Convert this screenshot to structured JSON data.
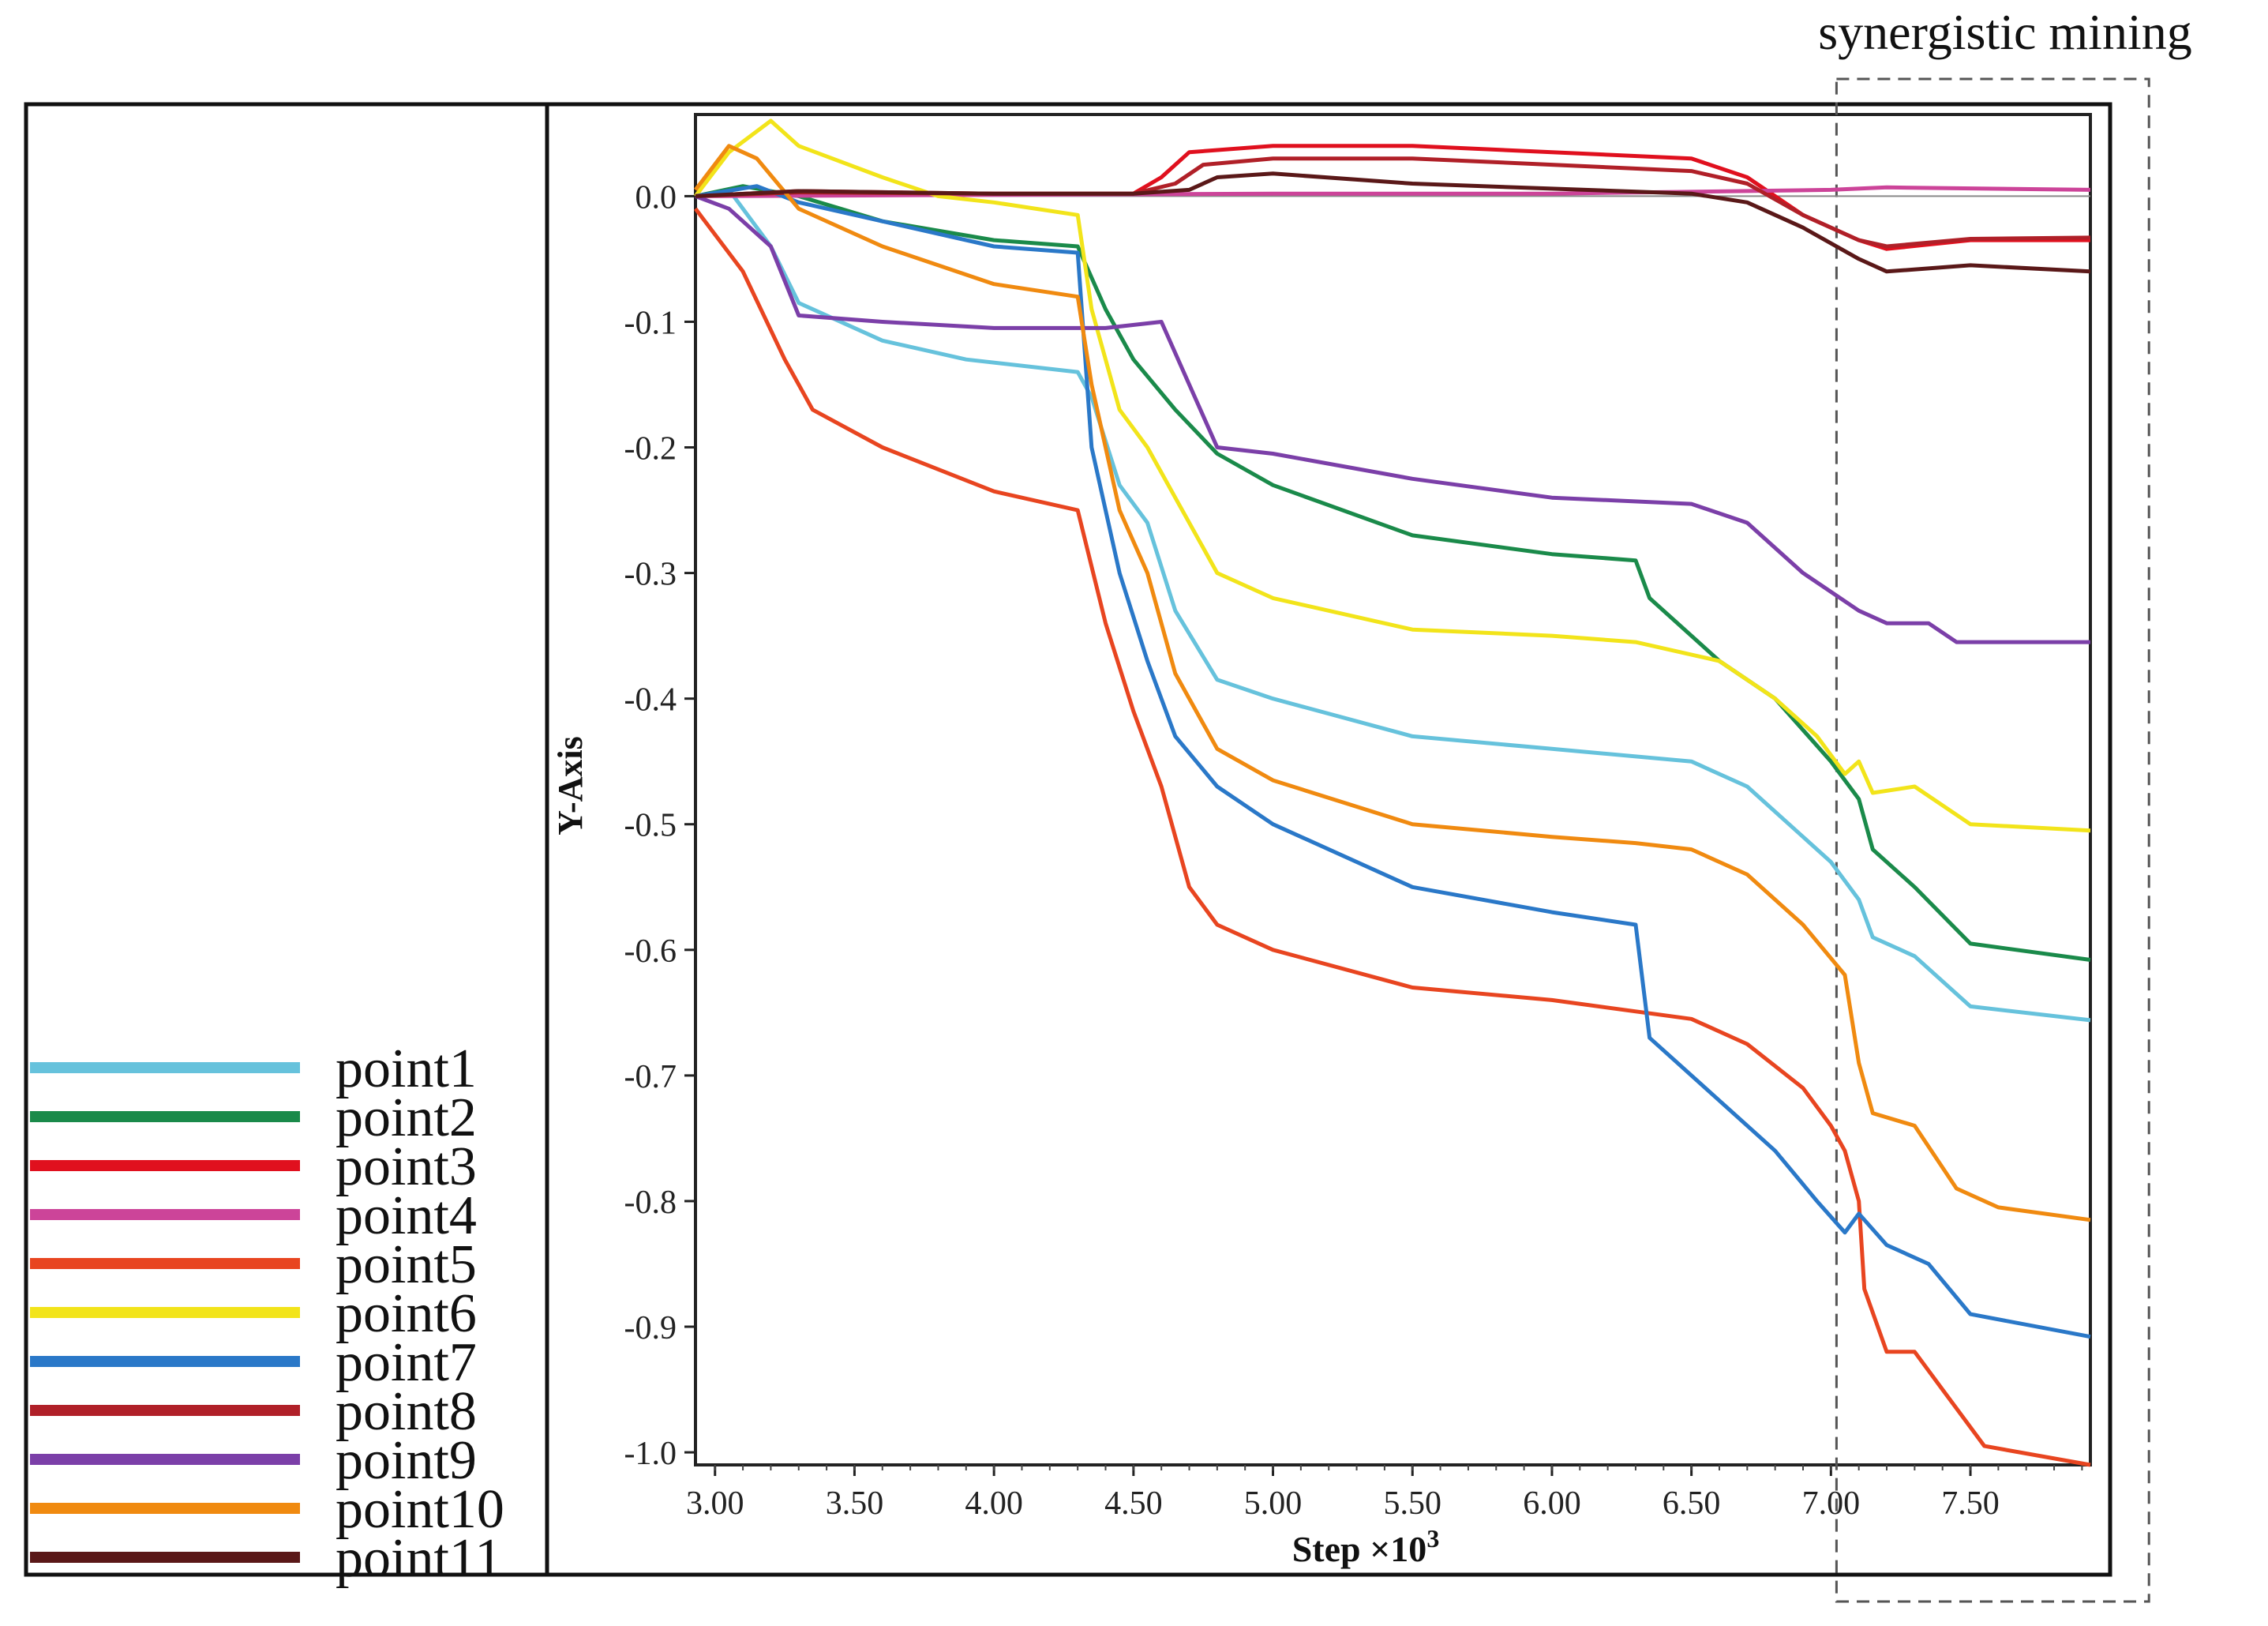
{
  "chart_data": {
    "type": "line",
    "title": "",
    "annotation": "synergistic mining",
    "annotation_range": [
      7.02,
      8.14
    ],
    "xlabel": "Step ×10",
    "xlabel_exponent": "3",
    "ylabel": "Y-Axis",
    "xlim": [
      2.93,
      7.93
    ],
    "ylim": [
      -1.01,
      0.065
    ],
    "xticks": [
      "3.00",
      "3.50",
      "4.00",
      "4.50",
      "5.00",
      "5.50",
      "6.00",
      "6.50",
      "7.00",
      "7.50"
    ],
    "xtick_values": [
      3.0,
      3.5,
      4.0,
      4.5,
      5.0,
      5.5,
      6.0,
      6.5,
      7.0,
      7.5
    ],
    "yticks": [
      "0.0",
      "-0.1",
      "-0.2",
      "-0.3",
      "-0.4",
      "-0.5",
      "-0.6",
      "-0.7",
      "-0.8",
      "-0.9",
      "-1.0"
    ],
    "ytick_values": [
      0.0,
      -0.1,
      -0.2,
      -0.3,
      -0.4,
      -0.5,
      -0.6,
      -0.7,
      -0.8,
      -0.9,
      -1.0
    ],
    "legend_position": "bottom-left",
    "series": [
      {
        "name": "point1",
        "color": "#66c2dc",
        "points": [
          [
            2.93,
            0
          ],
          [
            3.05,
            0.005
          ],
          [
            3.2,
            -0.04
          ],
          [
            3.3,
            -0.085
          ],
          [
            3.6,
            -0.115
          ],
          [
            3.9,
            -0.13
          ],
          [
            4.3,
            -0.14
          ],
          [
            4.35,
            -0.16
          ],
          [
            4.45,
            -0.23
          ],
          [
            4.55,
            -0.26
          ],
          [
            4.65,
            -0.33
          ],
          [
            4.8,
            -0.385
          ],
          [
            5.0,
            -0.4
          ],
          [
            5.5,
            -0.43
          ],
          [
            6.0,
            -0.44
          ],
          [
            6.5,
            -0.45
          ],
          [
            6.7,
            -0.47
          ],
          [
            6.9,
            -0.51
          ],
          [
            7.0,
            -0.53
          ],
          [
            7.1,
            -0.56
          ],
          [
            7.15,
            -0.59
          ],
          [
            7.3,
            -0.605
          ],
          [
            7.5,
            -0.645
          ],
          [
            7.93,
            -0.656
          ]
        ]
      },
      {
        "name": "point2",
        "color": "#1a8a4a",
        "points": [
          [
            2.93,
            0
          ],
          [
            3.1,
            0.008
          ],
          [
            3.3,
            0
          ],
          [
            3.6,
            -0.02
          ],
          [
            4.0,
            -0.035
          ],
          [
            4.3,
            -0.04
          ],
          [
            4.4,
            -0.09
          ],
          [
            4.5,
            -0.13
          ],
          [
            4.65,
            -0.17
          ],
          [
            4.8,
            -0.205
          ],
          [
            5.0,
            -0.23
          ],
          [
            5.5,
            -0.27
          ],
          [
            6.0,
            -0.285
          ],
          [
            6.3,
            -0.29
          ],
          [
            6.35,
            -0.32
          ],
          [
            6.6,
            -0.37
          ],
          [
            6.8,
            -0.4
          ],
          [
            7.0,
            -0.45
          ],
          [
            7.1,
            -0.48
          ],
          [
            7.15,
            -0.52
          ],
          [
            7.3,
            -0.55
          ],
          [
            7.5,
            -0.595
          ],
          [
            7.93,
            -0.608
          ]
        ]
      },
      {
        "name": "point3",
        "color": "#e0101e",
        "points": [
          [
            2.93,
            0
          ],
          [
            3.3,
            0.004
          ],
          [
            4.0,
            0.002
          ],
          [
            4.5,
            0.002
          ],
          [
            4.6,
            0.015
          ],
          [
            4.7,
            0.035
          ],
          [
            5.0,
            0.04
          ],
          [
            5.5,
            0.04
          ],
          [
            6.0,
            0.035
          ],
          [
            6.5,
            0.03
          ],
          [
            6.7,
            0.015
          ],
          [
            6.9,
            -0.015
          ],
          [
            7.1,
            -0.035
          ],
          [
            7.2,
            -0.042
          ],
          [
            7.5,
            -0.035
          ],
          [
            7.93,
            -0.035
          ]
        ]
      },
      {
        "name": "point4",
        "color": "#cc4499",
        "points": [
          [
            2.93,
            0
          ],
          [
            4.0,
            0.001
          ],
          [
            5.0,
            0.002
          ],
          [
            6.0,
            0.002
          ],
          [
            7.0,
            0.005
          ],
          [
            7.2,
            0.007
          ],
          [
            7.93,
            0.005
          ]
        ]
      },
      {
        "name": "point5",
        "color": "#e84520",
        "points": [
          [
            2.93,
            -0.01
          ],
          [
            3.1,
            -0.06
          ],
          [
            3.25,
            -0.13
          ],
          [
            3.35,
            -0.17
          ],
          [
            3.6,
            -0.2
          ],
          [
            4.0,
            -0.235
          ],
          [
            4.3,
            -0.25
          ],
          [
            4.4,
            -0.34
          ],
          [
            4.5,
            -0.41
          ],
          [
            4.6,
            -0.47
          ],
          [
            4.7,
            -0.55
          ],
          [
            4.8,
            -0.58
          ],
          [
            5.0,
            -0.6
          ],
          [
            5.5,
            -0.63
          ],
          [
            6.0,
            -0.64
          ],
          [
            6.5,
            -0.655
          ],
          [
            6.7,
            -0.675
          ],
          [
            6.9,
            -0.71
          ],
          [
            7.0,
            -0.74
          ],
          [
            7.05,
            -0.76
          ],
          [
            7.1,
            -0.8
          ],
          [
            7.12,
            -0.87
          ],
          [
            7.2,
            -0.92
          ],
          [
            7.3,
            -0.92
          ],
          [
            7.4,
            -0.95
          ],
          [
            7.55,
            -0.995
          ],
          [
            7.93,
            -1.01
          ]
        ]
      },
      {
        "name": "point6",
        "color": "#f2e41a",
        "points": [
          [
            2.93,
            0
          ],
          [
            3.05,
            0.035
          ],
          [
            3.2,
            0.06
          ],
          [
            3.3,
            0.04
          ],
          [
            3.6,
            0.015
          ],
          [
            3.8,
            0
          ],
          [
            4.0,
            -0.005
          ],
          [
            4.3,
            -0.015
          ],
          [
            4.35,
            -0.09
          ],
          [
            4.45,
            -0.17
          ],
          [
            4.55,
            -0.2
          ],
          [
            4.65,
            -0.24
          ],
          [
            4.8,
            -0.3
          ],
          [
            5.0,
            -0.32
          ],
          [
            5.5,
            -0.345
          ],
          [
            6.0,
            -0.35
          ],
          [
            6.3,
            -0.355
          ],
          [
            6.6,
            -0.37
          ],
          [
            6.8,
            -0.4
          ],
          [
            6.95,
            -0.43
          ],
          [
            7.05,
            -0.46
          ],
          [
            7.1,
            -0.45
          ],
          [
            7.15,
            -0.475
          ],
          [
            7.3,
            -0.47
          ],
          [
            7.5,
            -0.5
          ],
          [
            7.93,
            -0.505
          ]
        ]
      },
      {
        "name": "point7",
        "color": "#2a78c8",
        "points": [
          [
            2.93,
            0
          ],
          [
            3.15,
            0.008
          ],
          [
            3.3,
            -0.005
          ],
          [
            3.6,
            -0.02
          ],
          [
            4.0,
            -0.04
          ],
          [
            4.3,
            -0.045
          ],
          [
            4.35,
            -0.2
          ],
          [
            4.45,
            -0.3
          ],
          [
            4.55,
            -0.37
          ],
          [
            4.65,
            -0.43
          ],
          [
            4.8,
            -0.47
          ],
          [
            5.0,
            -0.5
          ],
          [
            5.5,
            -0.55
          ],
          [
            6.0,
            -0.57
          ],
          [
            6.3,
            -0.58
          ],
          [
            6.35,
            -0.67
          ],
          [
            6.6,
            -0.72
          ],
          [
            6.8,
            -0.76
          ],
          [
            6.95,
            -0.8
          ],
          [
            7.05,
            -0.825
          ],
          [
            7.1,
            -0.81
          ],
          [
            7.2,
            -0.835
          ],
          [
            7.35,
            -0.85
          ],
          [
            7.5,
            -0.89
          ],
          [
            7.93,
            -0.908
          ]
        ]
      },
      {
        "name": "point8",
        "color": "#b02028",
        "points": [
          [
            2.93,
            0
          ],
          [
            3.3,
            0.003
          ],
          [
            4.0,
            0.002
          ],
          [
            4.5,
            0.002
          ],
          [
            4.65,
            0.01
          ],
          [
            4.75,
            0.025
          ],
          [
            5.0,
            0.03
          ],
          [
            5.5,
            0.03
          ],
          [
            6.0,
            0.025
          ],
          [
            6.5,
            0.02
          ],
          [
            6.7,
            0.01
          ],
          [
            6.9,
            -0.015
          ],
          [
            7.1,
            -0.035
          ],
          [
            7.2,
            -0.04
          ],
          [
            7.5,
            -0.034
          ],
          [
            7.93,
            -0.033
          ]
        ]
      },
      {
        "name": "point9",
        "color": "#7b3fa8",
        "points": [
          [
            2.93,
            0
          ],
          [
            3.05,
            -0.01
          ],
          [
            3.2,
            -0.04
          ],
          [
            3.3,
            -0.095
          ],
          [
            3.6,
            -0.1
          ],
          [
            4.0,
            -0.105
          ],
          [
            4.4,
            -0.105
          ],
          [
            4.6,
            -0.1
          ],
          [
            4.7,
            -0.15
          ],
          [
            4.8,
            -0.2
          ],
          [
            5.0,
            -0.205
          ],
          [
            5.5,
            -0.225
          ],
          [
            6.0,
            -0.24
          ],
          [
            6.5,
            -0.245
          ],
          [
            6.7,
            -0.26
          ],
          [
            6.9,
            -0.3
          ],
          [
            7.1,
            -0.33
          ],
          [
            7.2,
            -0.34
          ],
          [
            7.35,
            -0.34
          ],
          [
            7.45,
            -0.355
          ],
          [
            7.93,
            -0.355
          ]
        ]
      },
      {
        "name": "point10",
        "color": "#f08a10",
        "points": [
          [
            2.93,
            0.005
          ],
          [
            3.05,
            0.04
          ],
          [
            3.15,
            0.03
          ],
          [
            3.3,
            -0.01
          ],
          [
            3.6,
            -0.04
          ],
          [
            4.0,
            -0.07
          ],
          [
            4.3,
            -0.08
          ],
          [
            4.35,
            -0.15
          ],
          [
            4.45,
            -0.25
          ],
          [
            4.55,
            -0.3
          ],
          [
            4.65,
            -0.38
          ],
          [
            4.8,
            -0.44
          ],
          [
            5.0,
            -0.465
          ],
          [
            5.5,
            -0.5
          ],
          [
            6.0,
            -0.51
          ],
          [
            6.3,
            -0.515
          ],
          [
            6.5,
            -0.52
          ],
          [
            6.7,
            -0.54
          ],
          [
            6.9,
            -0.58
          ],
          [
            7.05,
            -0.62
          ],
          [
            7.1,
            -0.69
          ],
          [
            7.15,
            -0.73
          ],
          [
            7.3,
            -0.74
          ],
          [
            7.45,
            -0.79
          ],
          [
            7.6,
            -0.805
          ],
          [
            7.93,
            -0.815
          ]
        ]
      },
      {
        "name": "point11",
        "color": "#5a1818",
        "points": [
          [
            2.93,
            0
          ],
          [
            3.3,
            0.004
          ],
          [
            4.0,
            0.002
          ],
          [
            4.5,
            0.002
          ],
          [
            4.7,
            0.005
          ],
          [
            4.8,
            0.015
          ],
          [
            5.0,
            0.018
          ],
          [
            5.5,
            0.01
          ],
          [
            6.0,
            0.006
          ],
          [
            6.5,
            0.002
          ],
          [
            6.7,
            -0.005
          ],
          [
            6.9,
            -0.025
          ],
          [
            7.1,
            -0.05
          ],
          [
            7.2,
            -0.06
          ],
          [
            7.5,
            -0.055
          ],
          [
            7.93,
            -0.06
          ]
        ]
      }
    ]
  }
}
